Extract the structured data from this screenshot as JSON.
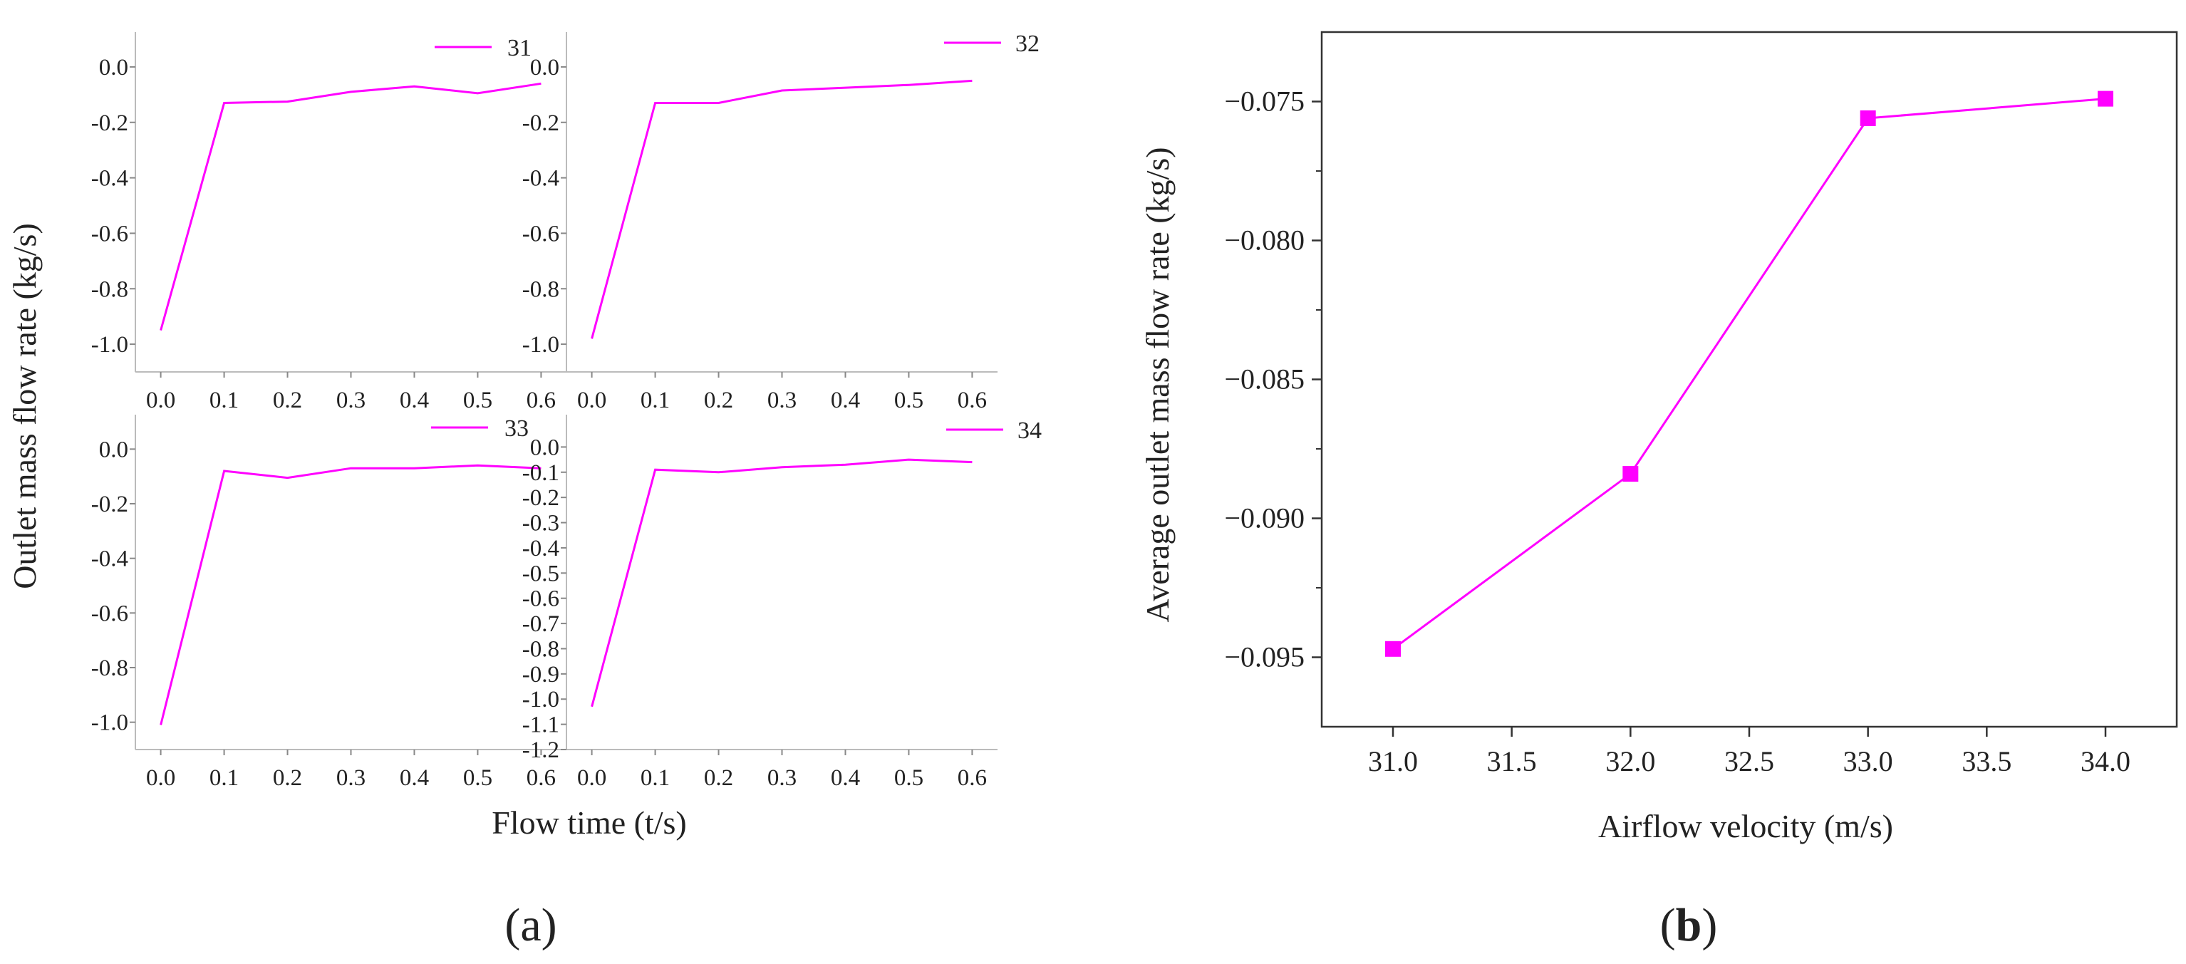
{
  "chart_data": [
    {
      "type": "line",
      "panel": "a",
      "title": "",
      "xlabel": "Flow time (t/s)",
      "ylabel": "Outlet  mass flow rate (kg/s)",
      "color": "#ff00ff",
      "subplots": [
        {
          "legend": "31",
          "x": [
            0.0,
            0.1,
            0.2,
            0.3,
            0.4,
            0.5,
            0.6
          ],
          "y": [
            -0.95,
            -0.13,
            -0.125,
            -0.09,
            -0.07,
            -0.095,
            -0.06
          ],
          "xlim": [
            -0.04,
            0.64
          ],
          "ylim": [
            -1.1,
            0.1
          ],
          "xticks": [
            0.0,
            0.1,
            0.2,
            0.3,
            0.4,
            0.5,
            0.6
          ],
          "yticks": [
            -1.0,
            -0.8,
            -0.6,
            -0.4,
            -0.2,
            0.0
          ],
          "xtick_labels": [
            "0.0",
            "0.1",
            "0.2",
            "0.3",
            "0.4",
            "0.5",
            "0.6"
          ],
          "ytick_labels": [
            "-1.0",
            "-0.8",
            "-0.6",
            "-0.4",
            "-0.2",
            "0.0"
          ]
        },
        {
          "legend": "32",
          "x": [
            0.0,
            0.1,
            0.2,
            0.3,
            0.4,
            0.5,
            0.6
          ],
          "y": [
            -0.98,
            -0.13,
            -0.13,
            -0.085,
            -0.075,
            -0.065,
            -0.05
          ],
          "xlim": [
            -0.04,
            0.64
          ],
          "ylim": [
            -1.1,
            0.1
          ],
          "xticks": [
            0.0,
            0.1,
            0.2,
            0.3,
            0.4,
            0.5,
            0.6
          ],
          "yticks": [
            -1.0,
            -0.8,
            -0.6,
            -0.4,
            -0.2,
            0.0
          ],
          "xtick_labels": [
            "0.0",
            "0.1",
            "0.2",
            "0.3",
            "0.4",
            "0.5",
            "0.6"
          ],
          "ytick_labels": [
            "-1.0",
            "-0.8",
            "-0.6",
            "-0.4",
            "-0.2",
            "0.0"
          ]
        },
        {
          "legend": "33",
          "x": [
            0.0,
            0.1,
            0.2,
            0.3,
            0.4,
            0.5,
            0.6
          ],
          "y": [
            -1.01,
            -0.08,
            -0.105,
            -0.07,
            -0.07,
            -0.06,
            -0.07
          ],
          "xlim": [
            -0.04,
            0.64
          ],
          "ylim": [
            -1.1,
            0.1
          ],
          "xticks": [
            0.0,
            0.1,
            0.2,
            0.3,
            0.4,
            0.5,
            0.6
          ],
          "yticks": [
            -1.0,
            -0.8,
            -0.6,
            -0.4,
            -0.2,
            0.0
          ],
          "xtick_labels": [
            "0.0",
            "0.1",
            "0.2",
            "0.3",
            "0.4",
            "0.5",
            "0.6"
          ],
          "ytick_labels": [
            "-1.0",
            "-0.8",
            "-0.6",
            "-0.4",
            "-0.2",
            "0.0"
          ]
        },
        {
          "legend": "34",
          "x": [
            0.0,
            0.1,
            0.2,
            0.3,
            0.4,
            0.5,
            0.6
          ],
          "y": [
            -1.03,
            -0.09,
            -0.1,
            -0.08,
            -0.07,
            -0.05,
            -0.06
          ],
          "xlim": [
            -0.04,
            0.64
          ],
          "ylim": [
            -1.2,
            0.1
          ],
          "xticks": [
            0.0,
            0.1,
            0.2,
            0.3,
            0.4,
            0.5,
            0.6
          ],
          "yticks": [
            -1.2,
            -1.1,
            -1.0,
            -0.9,
            -0.8,
            -0.7,
            -0.6,
            -0.5,
            -0.4,
            -0.3,
            -0.2,
            -0.1,
            0.0
          ],
          "xtick_labels": [
            "0.0",
            "0.1",
            "0.2",
            "0.3",
            "0.4",
            "0.5",
            "0.6"
          ],
          "ytick_labels": [
            "-1.2",
            "-1.1",
            "-1.0",
            "-0.9",
            "-0.8",
            "-0.7",
            "-0.6",
            "-0.5",
            "-0.4",
            "-0.3",
            "-0.2",
            "-0.1",
            "0.0"
          ]
        }
      ]
    },
    {
      "type": "line",
      "panel": "b",
      "title": "",
      "xlabel": "Airflow velocity (m/s)",
      "ylabel": "Average  outlet mass flow rate (kg/s)",
      "color": "#ff00ff",
      "marker": "square",
      "x": [
        31.0,
        32.0,
        33.0,
        34.0
      ],
      "y": [
        -0.0947,
        -0.0884,
        -0.0756,
        -0.0749
      ],
      "xlim": [
        30.7,
        34.3
      ],
      "ylim": [
        -0.0975,
        -0.0725
      ],
      "xticks": [
        31.0,
        31.5,
        32.0,
        32.5,
        33.0,
        33.5,
        34.0
      ],
      "yticks": [
        -0.095,
        -0.09,
        -0.085,
        -0.08,
        -0.075
      ],
      "xtick_labels": [
        "31.0",
        "31.5",
        "32.0",
        "32.5",
        "33.0",
        "33.5",
        "34.0"
      ],
      "ytick_labels": [
        "−0.095",
        "−0.090",
        "−0.085",
        "−0.080",
        "−0.075"
      ]
    }
  ],
  "panel_labels": {
    "a": "(a)",
    "b_open": "(",
    "b_letter": "b",
    "b_close": ")"
  }
}
